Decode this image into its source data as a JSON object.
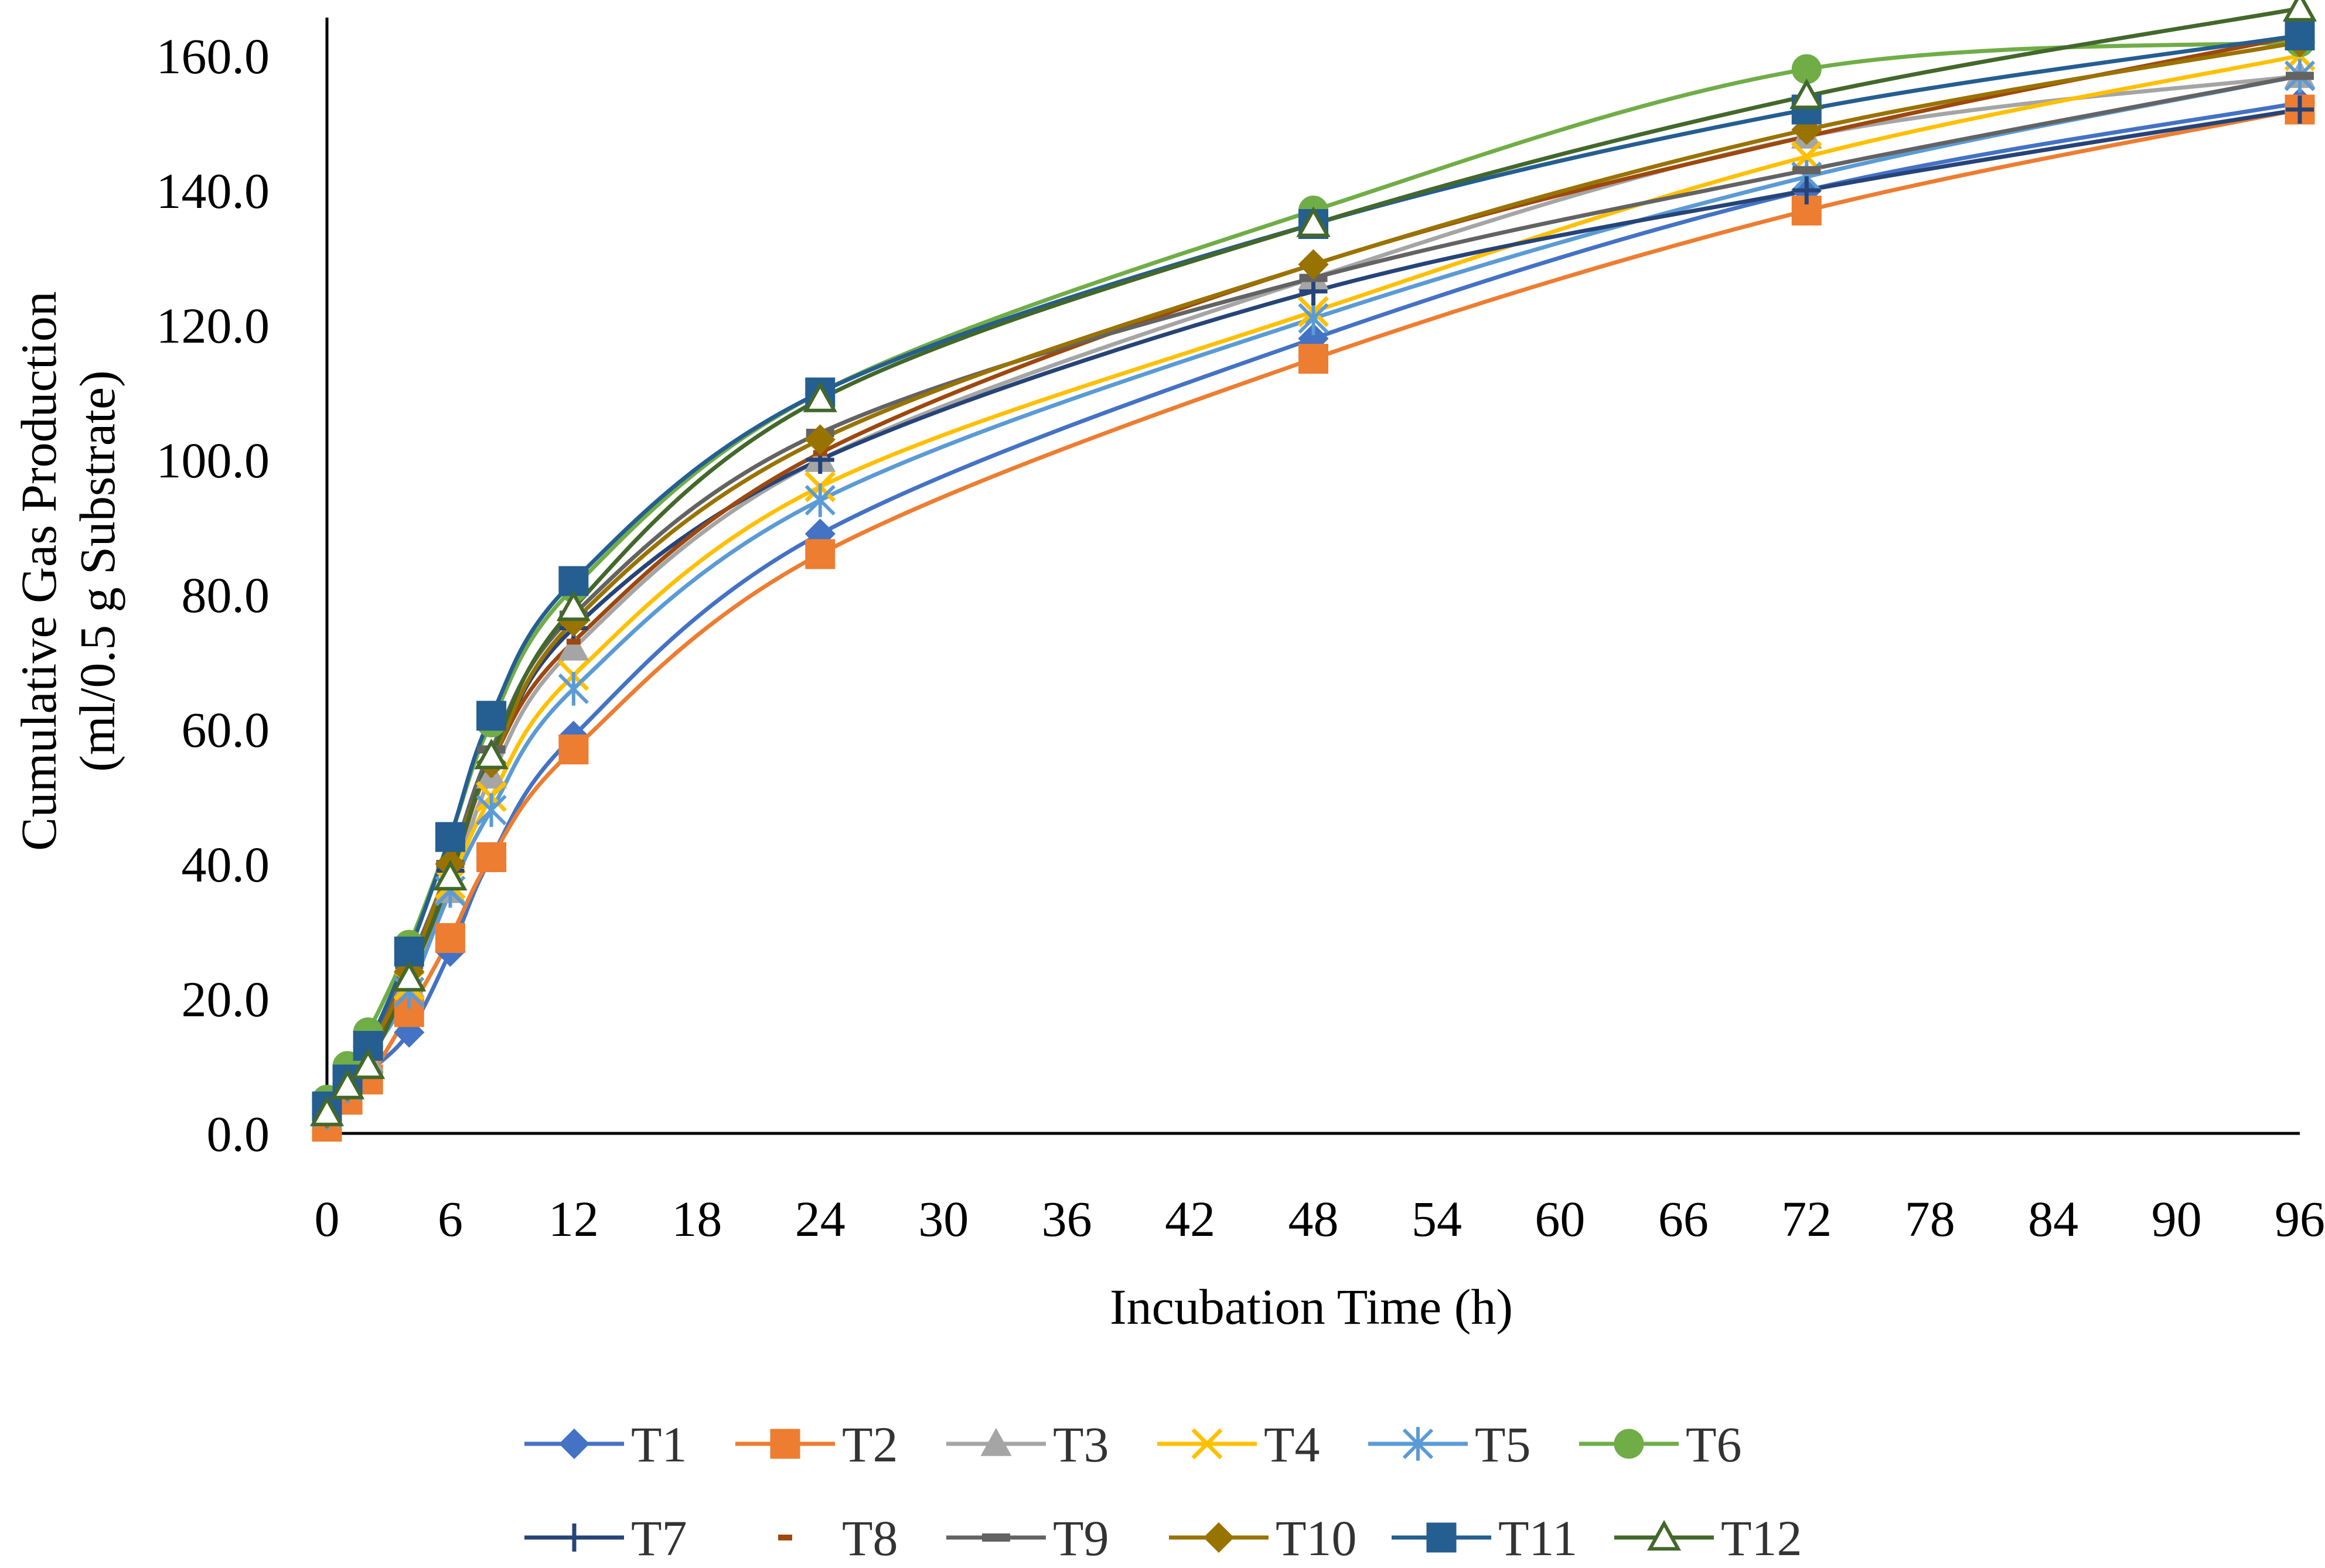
{
  "chart_data": {
    "type": "line",
    "title": "",
    "xlabel": "Incubation Time (h)",
    "ylabel_lines": [
      "Cumulative Gas Production",
      "(ml/0.5 g Substrate)"
    ],
    "xlim": [
      0,
      96
    ],
    "ylim": [
      0,
      170
    ],
    "x_ticks": [
      0,
      6,
      12,
      18,
      24,
      30,
      36,
      42,
      48,
      54,
      60,
      66,
      72,
      78,
      84,
      90,
      96
    ],
    "x_tick_labels": [
      "0",
      "6",
      "12",
      "18",
      "24",
      "30",
      "36",
      "42",
      "48",
      "54",
      "60",
      "66",
      "72",
      "78",
      "84",
      "90",
      "96"
    ],
    "y_ticks": [
      0,
      20,
      40,
      60,
      80,
      100,
      120,
      140,
      160
    ],
    "y_tick_labels": [
      "0.0",
      "20.0",
      "40.0",
      "60.0",
      "80.0",
      "100.0",
      "120.0",
      "140.0",
      "160.0"
    ],
    "grid": false,
    "legend_position": "bottom",
    "x": [
      0,
      1,
      2,
      4,
      6,
      8,
      12,
      24,
      48,
      72,
      96
    ],
    "series": [
      {
        "name": "T1",
        "color": "#4472C4",
        "marker": "diamond",
        "values": [
          2,
          6,
          9,
          15,
          27,
          41,
          59,
          89,
          118,
          140,
          153
        ]
      },
      {
        "name": "T2",
        "color": "#ED7D31",
        "marker": "square",
        "values": [
          1,
          5,
          8,
          18,
          29,
          41,
          57,
          86,
          115,
          137,
          152
        ]
      },
      {
        "name": "T3",
        "color": "#A5A5A5",
        "marker": "triangle",
        "values": [
          3,
          7,
          11,
          22,
          36,
          53,
          72,
          100,
          127,
          148,
          157
        ]
      },
      {
        "name": "T4",
        "color": "#FFC000",
        "marker": "x",
        "values": [
          3,
          7,
          11,
          22,
          37,
          50,
          68,
          96,
          122,
          145,
          160
        ]
      },
      {
        "name": "T5",
        "color": "#5B9BD5",
        "marker": "star",
        "values": [
          3,
          7,
          11,
          21,
          36,
          48,
          66,
          94,
          121,
          142,
          157
        ]
      },
      {
        "name": "T6",
        "color": "#70AD47",
        "marker": "circle",
        "values": [
          5,
          10,
          15,
          28,
          44,
          61,
          81,
          110,
          137,
          158,
          162
        ]
      },
      {
        "name": "T7",
        "color": "#264478",
        "marker": "plus",
        "values": [
          3,
          7,
          12,
          24,
          39,
          55,
          75,
          100,
          125,
          140,
          152
        ]
      },
      {
        "name": "T8",
        "color": "#9E480E",
        "marker": "dash",
        "values": [
          3,
          7,
          12,
          23,
          38,
          55,
          73,
          101,
          129,
          148,
          163
        ]
      },
      {
        "name": "T9",
        "color": "#636363",
        "marker": "bar",
        "values": [
          3,
          7,
          12,
          25,
          40,
          57,
          77,
          104,
          127,
          143,
          157
        ]
      },
      {
        "name": "T10",
        "color": "#997300",
        "marker": "diamond",
        "values": [
          3,
          7,
          12,
          24,
          40,
          55,
          76,
          103,
          129,
          149,
          162
        ]
      },
      {
        "name": "T11",
        "color": "#255E91",
        "marker": "square",
        "values": [
          4,
          8,
          13,
          27,
          44,
          62,
          82,
          110,
          135,
          152,
          163
        ]
      },
      {
        "name": "T12",
        "color": "#43682B",
        "marker": "triangle-open",
        "values": [
          3,
          7,
          10,
          23,
          38,
          56,
          78,
          109,
          135,
          154,
          167
        ]
      }
    ]
  }
}
